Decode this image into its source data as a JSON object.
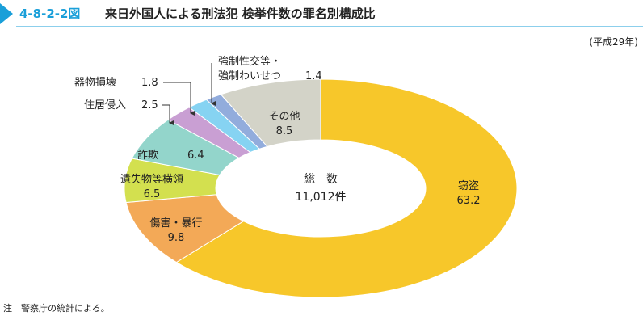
{
  "figure_number": "4-8-2-2図",
  "chart_data": {
    "type": "donut",
    "title": "来日外国人による刑法犯 検挙件数の罪名別構成比",
    "subtitle": "(平成29年)",
    "center_label": "総　数",
    "center_total": "11,012件",
    "categories": [
      "窃盗",
      "傷害・暴行",
      "遺失物等横領",
      "詐欺",
      "住居侵入",
      "器物損壊",
      "強制性交等・\n強制わいせつ",
      "その他"
    ],
    "values": [
      63.2,
      9.8,
      6.5,
      6.4,
      2.5,
      1.8,
      1.4,
      8.5
    ],
    "colors": [
      "#f7c72a",
      "#f3a957",
      "#d3e04f",
      "#93d5cb",
      "#c99fd3",
      "#86d3f2",
      "#92acdc",
      "#d3d3c8"
    ]
  },
  "note": "注　警察庁の統計による。"
}
